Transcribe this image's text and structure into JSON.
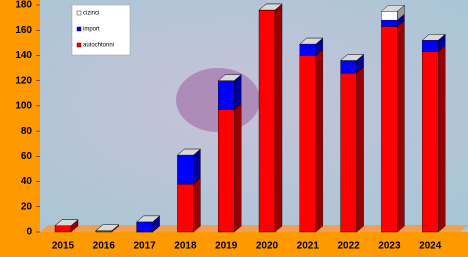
{
  "chart_data": {
    "type": "bar3d_stacked",
    "categories": [
      "2015",
      "2016",
      "2017",
      "2018",
      "2019",
      "2020",
      "2021",
      "2022",
      "2023",
      "2024"
    ],
    "series": [
      {
        "name": "autochtonni",
        "color": "#ff0000",
        "values": [
          5,
          1,
          0,
          38,
          97,
          176,
          140,
          126,
          163,
          143
        ]
      },
      {
        "name": "import",
        "color": "#0000ff",
        "values": [
          0,
          0,
          8,
          23,
          23,
          0,
          9,
          10,
          5,
          9
        ]
      },
      {
        "name": "cizinci",
        "color": "#ffffff",
        "values": [
          0,
          0,
          0,
          0,
          0,
          0,
          0,
          0,
          7,
          0
        ]
      }
    ],
    "ylim": [
      0,
      180
    ],
    "yticks": [
      0,
      20,
      40,
      60,
      80,
      100,
      120,
      140,
      160,
      180
    ]
  }
}
